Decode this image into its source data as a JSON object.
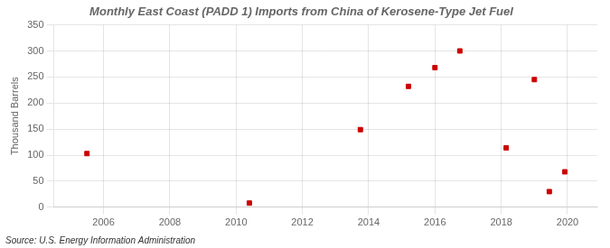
{
  "chart_data": {
    "type": "scatter",
    "title": "Monthly East Coast (PADD 1) Imports from China of Kerosene-Type Jet Fuel",
    "ylabel": "Thousand Barrels",
    "annotations": [
      "Source: U.S. Energy Information Administration"
    ],
    "x": [
      2005.5,
      2010.4,
      2013.75,
      2015.2,
      2016.0,
      2016.75,
      2018.15,
      2019.0,
      2019.45,
      2019.92
    ],
    "values": [
      103,
      8,
      149,
      232,
      268,
      300,
      114,
      245,
      30,
      68
    ],
    "color": "#cc0000",
    "marker": "square",
    "xlim": [
      2004.5,
      2020.9
    ],
    "ylim": [
      0,
      350
    ],
    "xticks": [
      2006,
      2008,
      2010,
      2012,
      2014,
      2016,
      2018,
      2020
    ],
    "yticks": [
      0,
      50,
      100,
      150,
      200,
      250,
      300,
      350
    ],
    "grid": true
  }
}
